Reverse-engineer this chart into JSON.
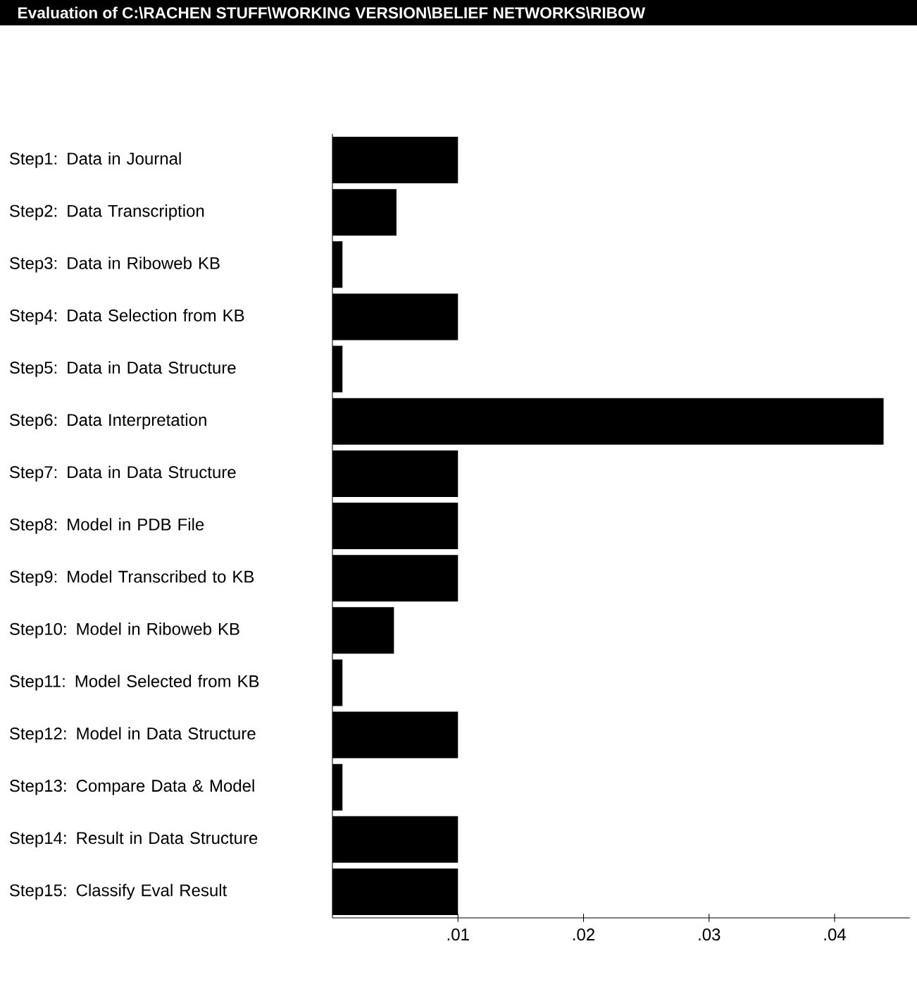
{
  "chart_data": {
    "type": "bar",
    "orientation": "horizontal",
    "title": "Evaluation of C:\\RACHEN STUFF\\WORKING VERSION\\BELIEF NETWORKS\\RIBOW",
    "categories": [
      "Step1: Data in Journal",
      "Step2: Data Transcription",
      "Step3: Data in Riboweb KB",
      "Step4: Data Selection from KB",
      "Step5: Data in Data Structure",
      "Step6: Data Interpretation",
      "Step7: Data in Data Structure",
      "Step8: Model in PDB File",
      "Step9: Model Transcribed to KB",
      "Step10: Model in Riboweb KB",
      "Step11: Model Selected from KB",
      "Step12: Model in Data Structure",
      "Step13: Compare Data & Model",
      "Step14: Result in Data Structure",
      "Step15: Classify Eval Result"
    ],
    "values": [
      0.01,
      0.0051,
      0.0008,
      0.01,
      0.0008,
      0.0439,
      0.01,
      0.01,
      0.01,
      0.0049,
      0.0008,
      0.01,
      0.0008,
      0.01,
      0.01
    ],
    "color": "#000000",
    "xlim": [
      0,
      0.046
    ],
    "xticks": [
      {
        "value": 0.01,
        "label": ".01"
      },
      {
        "value": 0.02,
        "label": ".02"
      },
      {
        "value": 0.03,
        "label": ".03"
      },
      {
        "value": 0.04,
        "label": ".04"
      }
    ]
  }
}
